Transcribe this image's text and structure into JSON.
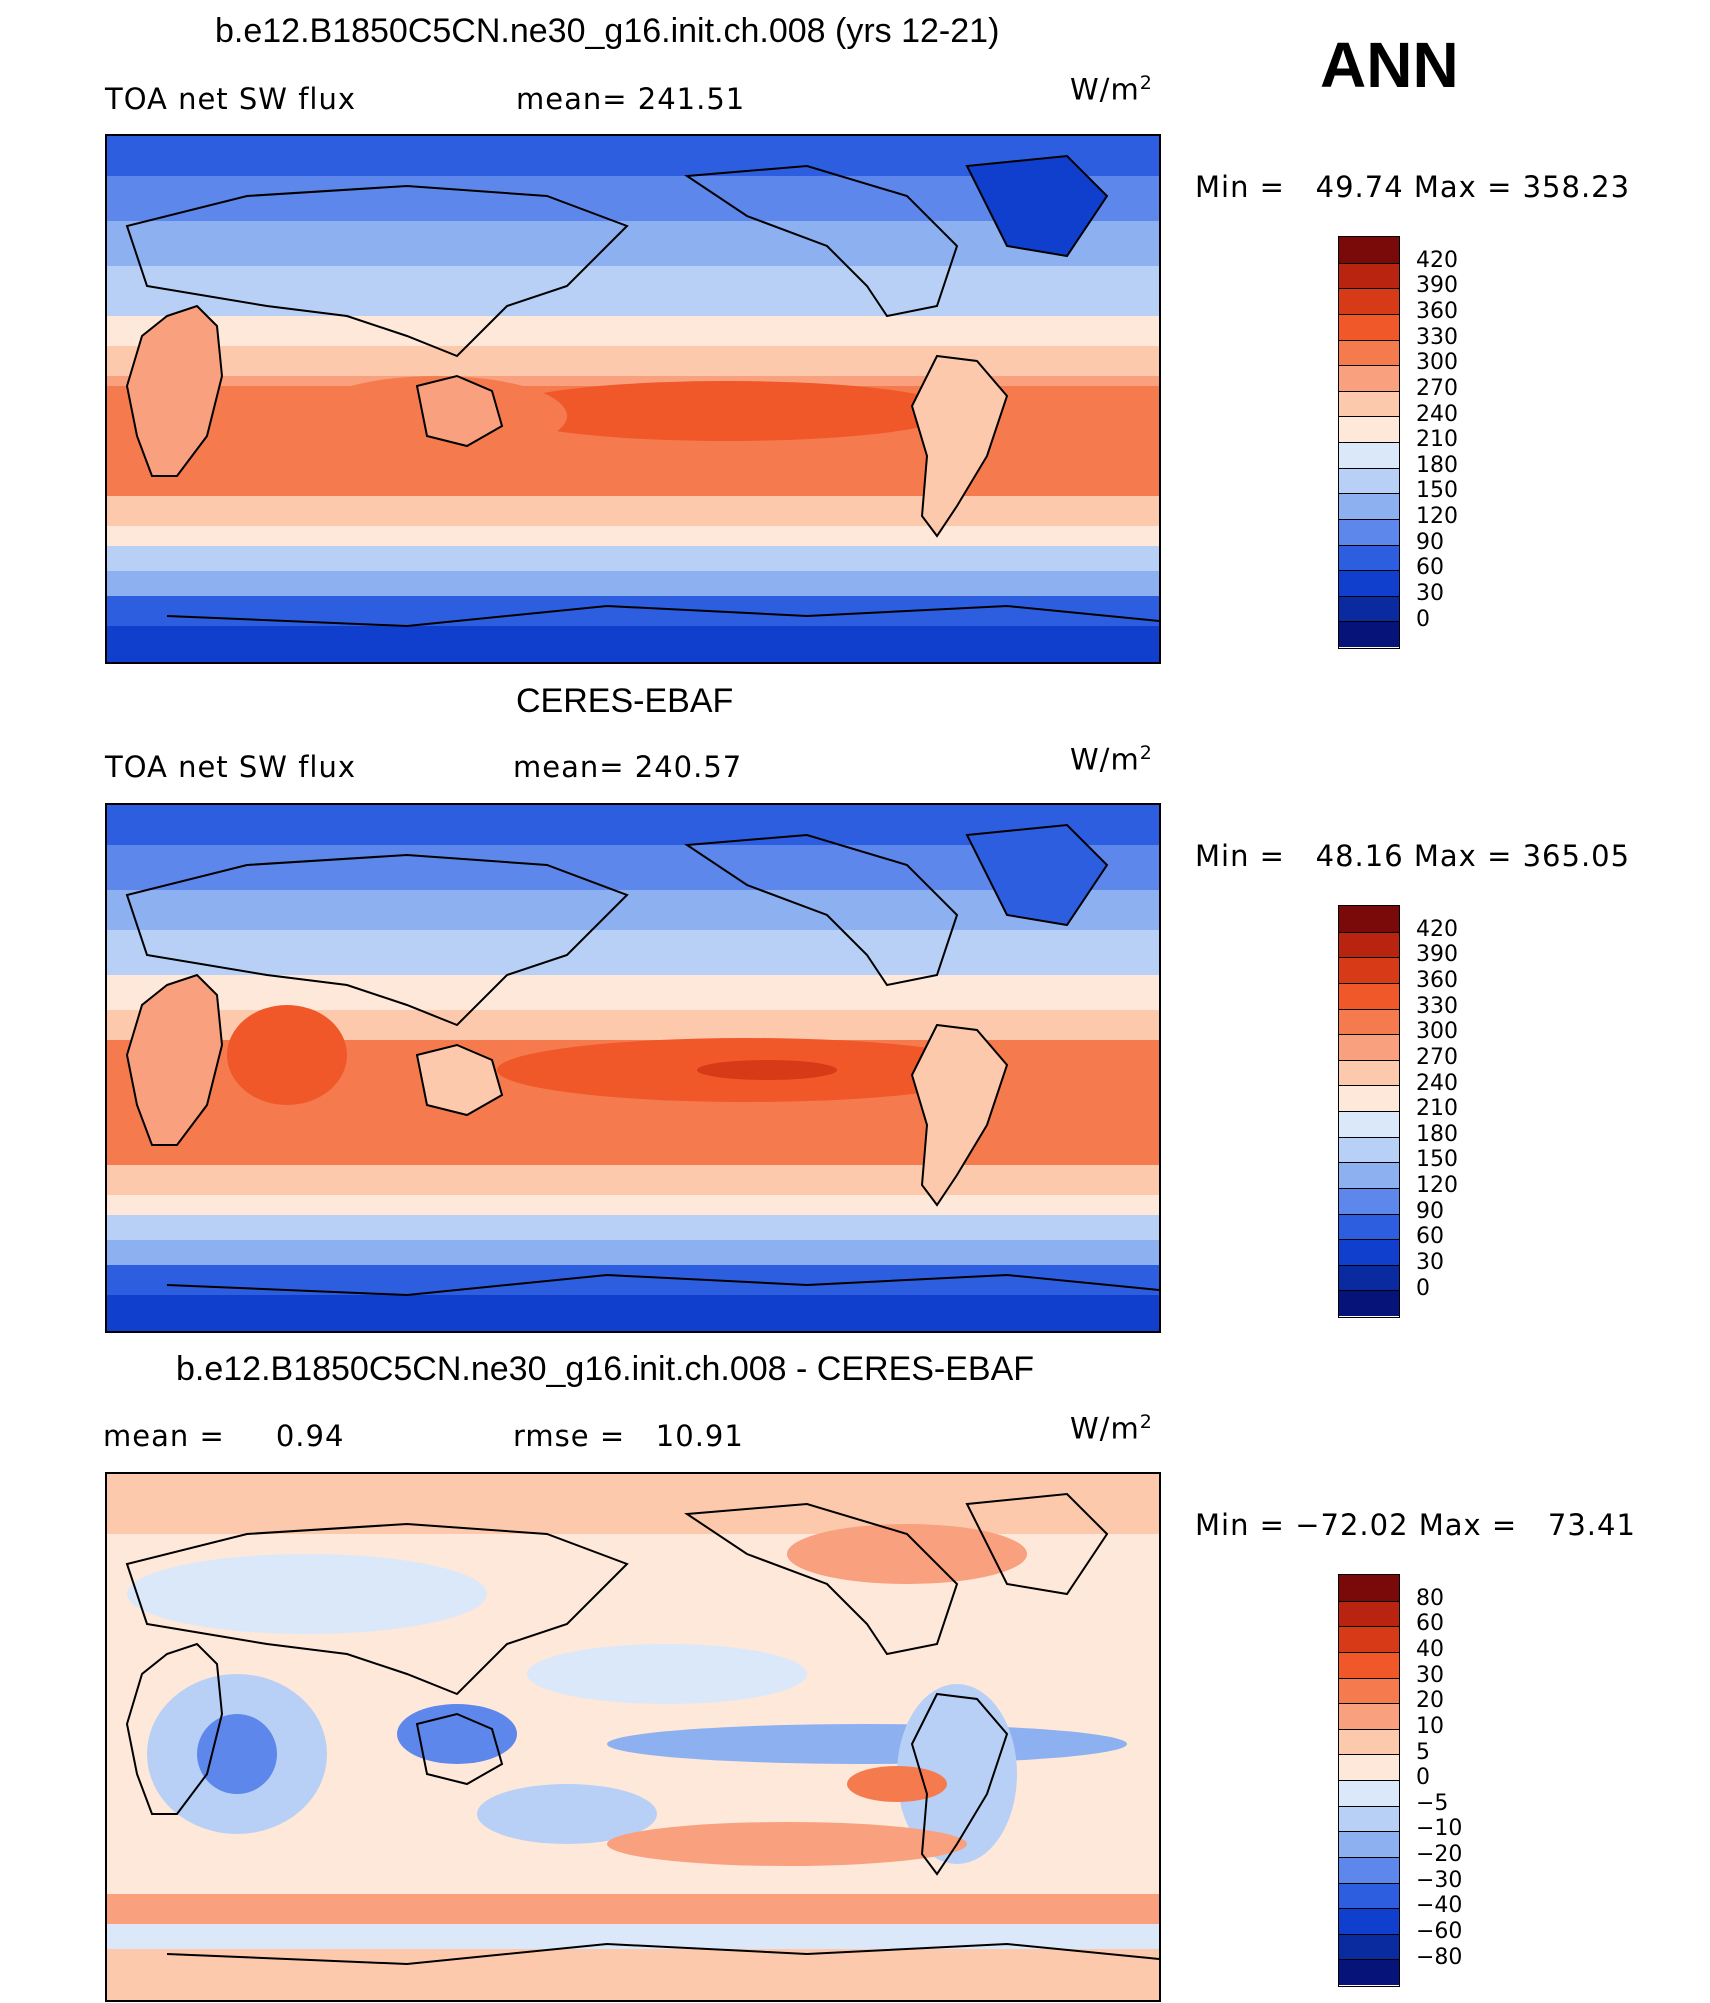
{
  "season": "ANN",
  "units_prefix": "W/m",
  "units_exp": "2",
  "panels": [
    {
      "title": "b.e12.B1850C5CN.ne30_g16.init.ch.008 (yrs 12-21)",
      "left_label": "TOA net SW flux",
      "stat_label": "mean=",
      "stat_value": "241.51",
      "min_text": "Min =",
      "min_value": "49.74",
      "max_text": "Max =",
      "max_value": "358.23",
      "levels": [
        "420",
        "390",
        "360",
        "330",
        "300",
        "270",
        "240",
        "210",
        "180",
        "150",
        "120",
        "90",
        "60",
        "30",
        "0"
      ],
      "colors": [
        "#7a0a0a",
        "#b8240f",
        "#d63a16",
        "#f0582a",
        "#f57b4e",
        "#f9a07e",
        "#fcc9ad",
        "#fde8da",
        "#dbe8f9",
        "#b8d0f5",
        "#8db0f0",
        "#5d87ea",
        "#2e5ee0",
        "#0f3fcc",
        "#0a2aa0",
        "#06147a"
      ]
    },
    {
      "title": "CERES-EBAF",
      "left_label": "TOA net SW flux",
      "stat_label": "mean=",
      "stat_value": "240.57",
      "min_text": "Min =",
      "min_value": "48.16",
      "max_text": "Max =",
      "max_value": "365.05",
      "levels": [
        "420",
        "390",
        "360",
        "330",
        "300",
        "270",
        "240",
        "210",
        "180",
        "150",
        "120",
        "90",
        "60",
        "30",
        "0"
      ],
      "colors": [
        "#7a0a0a",
        "#b8240f",
        "#d63a16",
        "#f0582a",
        "#f57b4e",
        "#f9a07e",
        "#fcc9ad",
        "#fde8da",
        "#dbe8f9",
        "#b8d0f5",
        "#8db0f0",
        "#5d87ea",
        "#2e5ee0",
        "#0f3fcc",
        "#0a2aa0",
        "#06147a"
      ]
    },
    {
      "title": "b.e12.B1850C5CN.ne30_g16.init.ch.008 - CERES-EBAF",
      "left_label": "mean =",
      "left_value": "0.94",
      "stat_label": "rmse =",
      "stat_value": "10.91",
      "min_text": "Min =",
      "min_value": "−72.02",
      "max_text": "Max =",
      "max_value": "73.41",
      "levels": [
        "80",
        "60",
        "40",
        "30",
        "20",
        "10",
        "5",
        "0",
        "−5",
        "−10",
        "−20",
        "−30",
        "−40",
        "−60",
        "−80"
      ],
      "colors": [
        "#7a0a0a",
        "#b8240f",
        "#d63a16",
        "#f0582a",
        "#f57b4e",
        "#f9a07e",
        "#fcc9ad",
        "#fde8da",
        "#dbe8f9",
        "#b8d0f5",
        "#8db0f0",
        "#5d87ea",
        "#2e5ee0",
        "#0f3fcc",
        "#0a2aa0",
        "#06147a"
      ]
    }
  ]
}
